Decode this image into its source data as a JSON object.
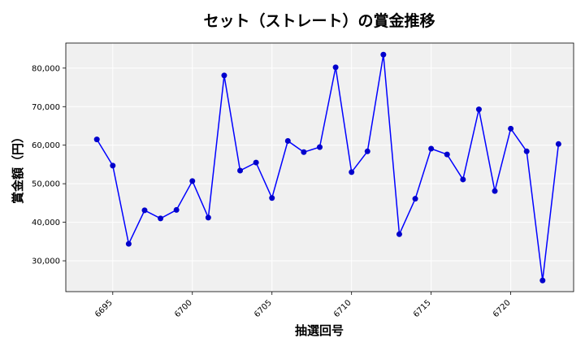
{
  "chart_data": {
    "type": "line",
    "title": "セット（ストレート）の賞金推移",
    "xlabel": "抽選回号",
    "ylabel": "賞金額（円）",
    "xlim": [
      6692.05,
      6723.95
    ],
    "ylim": [
      22000,
      86500
    ],
    "x_ticks": [
      6695,
      6700,
      6705,
      6710,
      6715,
      6720
    ],
    "y_ticks": [
      30000,
      40000,
      50000,
      60000,
      70000,
      80000
    ],
    "y_tick_labels": [
      "30,000",
      "40,000",
      "50,000",
      "60,000",
      "70,000",
      "80,000"
    ],
    "grid": true,
    "background": "#f0f0f0",
    "line_color": "#0000ff",
    "marker_color": "#0000cc",
    "series": [
      {
        "x": [
          6694,
          6695,
          6696,
          6697,
          6698,
          6699,
          6700,
          6701,
          6702,
          6703,
          6704,
          6705,
          6706,
          6707,
          6708,
          6709,
          6710,
          6711,
          6712,
          6713,
          6714,
          6715,
          6716,
          6717,
          6718,
          6719,
          6720,
          6721,
          6722,
          6723
        ],
        "values": [
          61500,
          54700,
          34400,
          43100,
          41000,
          43200,
          50700,
          41200,
          78100,
          53400,
          55500,
          46300,
          61100,
          58200,
          59500,
          80200,
          53000,
          58400,
          83500,
          36900,
          46100,
          59100,
          57600,
          51100,
          69300,
          48100,
          64300,
          58400,
          24900,
          60300
        ]
      }
    ]
  }
}
